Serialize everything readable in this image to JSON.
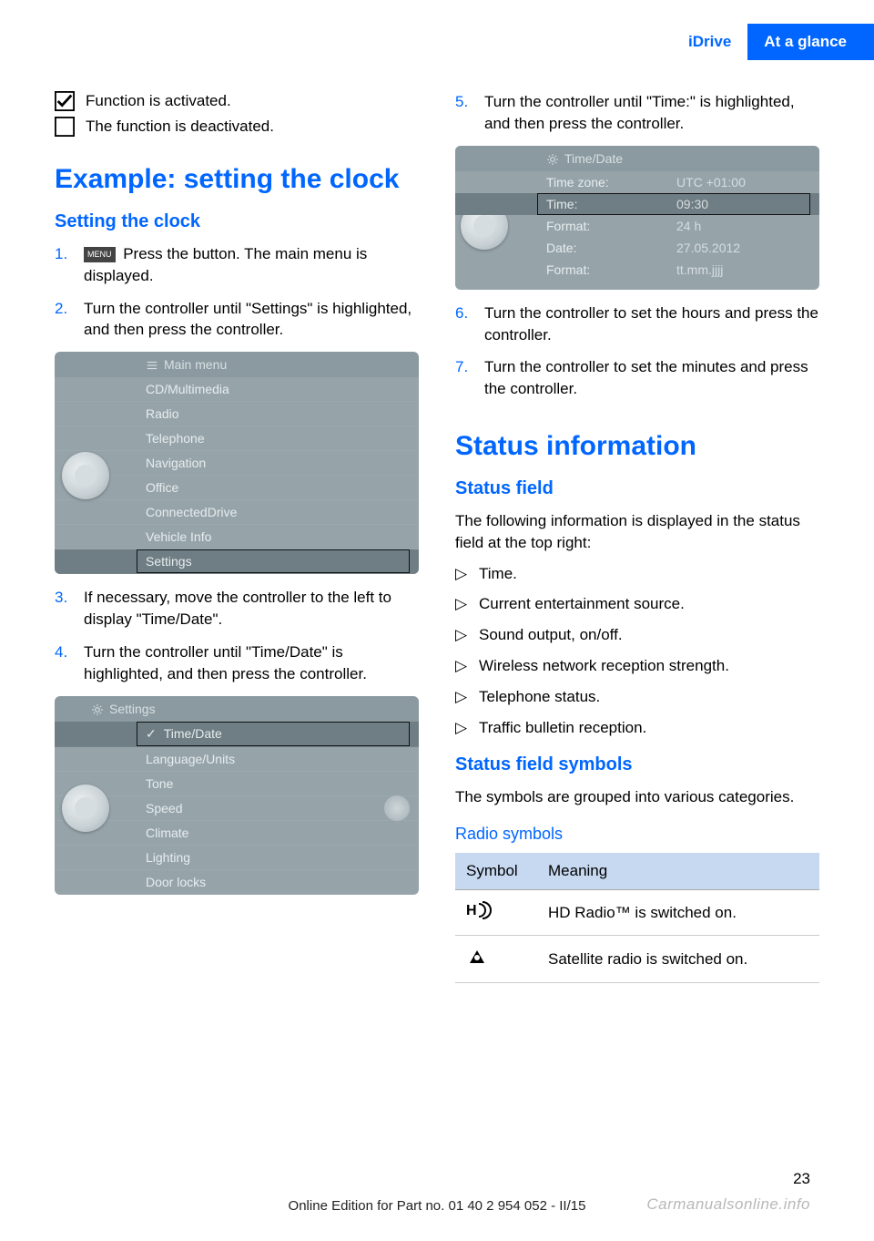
{
  "header": {
    "idrive": "iDrive",
    "section": "At a glance"
  },
  "leftcol": {
    "activated": "Function is activated.",
    "deactivated": "The function is deactivated.",
    "h1": "Example: setting the clock",
    "h2": "Setting the clock",
    "steps": {
      "s1_num": "1.",
      "s1_btn": "MENU",
      "s1_text": " Press the button. The main menu is displayed.",
      "s2_num": "2.",
      "s2_text": "Turn the controller until \"Settings\" is highlighted, and then press the controller.",
      "s3_num": "3.",
      "s3_text": "If necessary, move the controller to the left to display \"Time/Date\".",
      "s4_num": "4.",
      "s4_text": "Turn the controller until \"Time/Date\" is highlighted, and then press the controller."
    },
    "mainmenu": {
      "title": "Main menu",
      "items": [
        "CD/Multimedia",
        "Radio",
        "Telephone",
        "Navigation",
        "Office",
        "ConnectedDrive",
        "Vehicle Info",
        "Settings"
      ],
      "highlight_index": 7
    },
    "settingsmenu": {
      "title": "Settings",
      "items": [
        "Time/Date",
        "Language/Units",
        "Tone",
        "Speed",
        "Climate",
        "Lighting",
        "Door locks"
      ],
      "highlight_index": 0,
      "check_index": 0
    }
  },
  "rightcol": {
    "steps": {
      "s5_num": "5.",
      "s5_text": "Turn the controller until \"Time:\" is highlighted, and then press the controller.",
      "s6_num": "6.",
      "s6_text": "Turn the controller to set the hours and press the controller.",
      "s7_num": "7.",
      "s7_text": "Turn the controller to set the minutes and press the controller."
    },
    "timedate": {
      "title": "Time/Date",
      "rows": [
        {
          "label": "Time zone:",
          "value": "UTC +01:00"
        },
        {
          "label": "Time:",
          "value": "09:30"
        },
        {
          "label": "Format:",
          "value": "24 h"
        },
        {
          "label": "Date:",
          "value": "27.05.2012"
        },
        {
          "label": "Format:",
          "value": "tt.mm.jjjj"
        }
      ],
      "highlight_index": 1
    },
    "h1_status": "Status information",
    "h2_field": "Status field",
    "field_para": "The following information is displayed in the status field at the top right:",
    "field_items": [
      "Time.",
      "Current entertainment source.",
      "Sound output, on/off.",
      "Wireless network reception strength.",
      "Telephone status.",
      "Traffic bulletin reception."
    ],
    "h2_symbols": "Status field symbols",
    "symbols_para": "The symbols are grouped into various categories.",
    "h3_radio": "Radio symbols",
    "table": {
      "col1": "Symbol",
      "col2": "Meaning",
      "row1": "HD Radio™ is switched on.",
      "row2": "Satellite radio is switched on."
    }
  },
  "footer": {
    "pagenum": "23",
    "line": "Online Edition for Part no. 01 40 2 954 052 - II/15",
    "watermark": "Carmanualsonline.info"
  },
  "colors": {
    "blue": "#0066ff",
    "header_bg": "#0066ff",
    "scr_bg": "#96a4aa",
    "scr_header": "#8a9aa0",
    "scr_highlight": "#6f7e84",
    "table_header": "#c6d9f1"
  }
}
